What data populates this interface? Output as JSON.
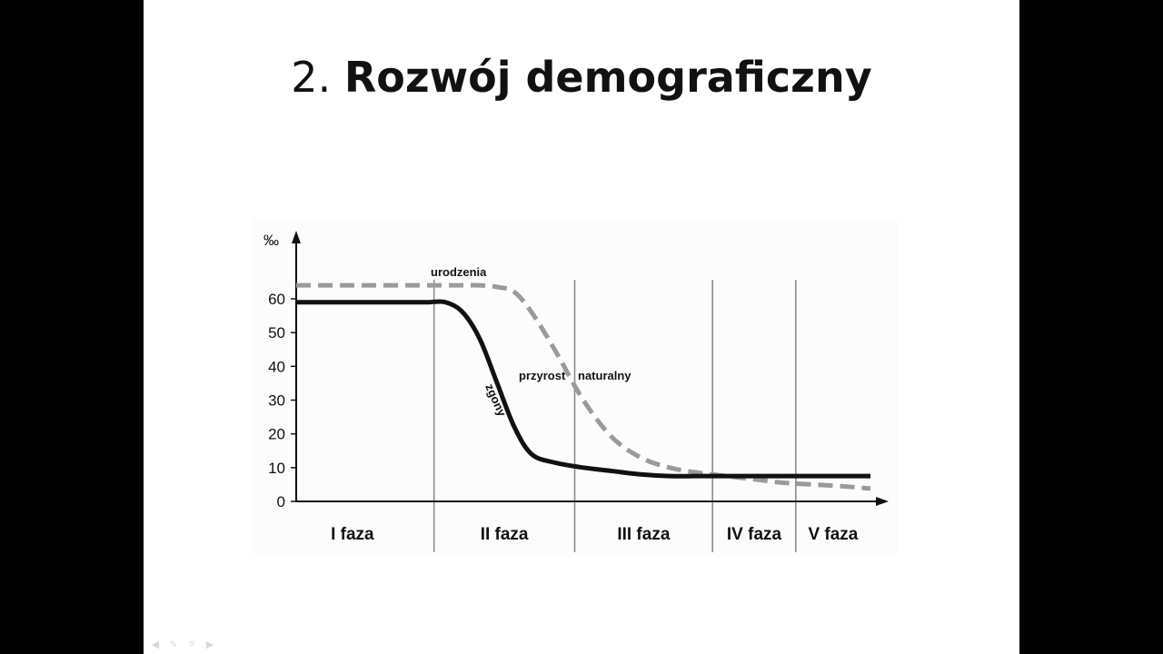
{
  "slide": {
    "title_number": "2.",
    "title_text": "Rozwój demograficzny"
  },
  "chart_data": {
    "type": "line",
    "ylabel": "‰",
    "y_ticks": [
      0,
      10,
      20,
      30,
      40,
      50,
      60
    ],
    "ylim": [
      0,
      66
    ],
    "grid": false,
    "phases": [
      "I faza",
      "II faza",
      "III faza",
      "IV faza",
      "V faza"
    ],
    "series": [
      {
        "name": "urodzenia",
        "style": "dashed",
        "color": "#9a9a9a",
        "x": [
          0,
          6,
          10,
          14,
          17,
          20,
          23,
          26,
          29,
          32,
          35,
          38,
          41,
          45,
          50,
          55,
          60,
          65,
          70,
          75,
          80,
          85,
          90,
          95,
          100
        ],
        "values": [
          64,
          64,
          64,
          64,
          64,
          64,
          64,
          64,
          64,
          64,
          63.5,
          62,
          56,
          45,
          30,
          19,
          13,
          10,
          8.5,
          7.5,
          6.5,
          5.5,
          5,
          4.5,
          3.8
        ]
      },
      {
        "name": "zgony",
        "style": "solid",
        "color": "#111111",
        "x": [
          0,
          6,
          10,
          14,
          17,
          20,
          23,
          26,
          29,
          32,
          35,
          38,
          41,
          45,
          50,
          55,
          60,
          65,
          70,
          75,
          80,
          85,
          90,
          95,
          100
        ],
        "values": [
          59,
          59,
          59,
          59,
          59,
          59,
          59,
          59,
          56,
          48,
          35,
          22,
          14,
          11.5,
          10,
          9,
          8,
          7.5,
          7.5,
          7.5,
          7.5,
          7.5,
          7.5,
          7.5,
          7.5
        ]
      }
    ],
    "annotations": [
      "urodzenia",
      "przyrost",
      "naturalny",
      "zgony"
    ]
  },
  "colors": {
    "background": "#000000",
    "slide": "#ffffff",
    "axis": "#111111",
    "dividers": "#8c8c8c"
  },
  "nav_icons": [
    "prev-arrow-icon",
    "pen-icon",
    "menu-icon",
    "next-arrow-icon"
  ]
}
